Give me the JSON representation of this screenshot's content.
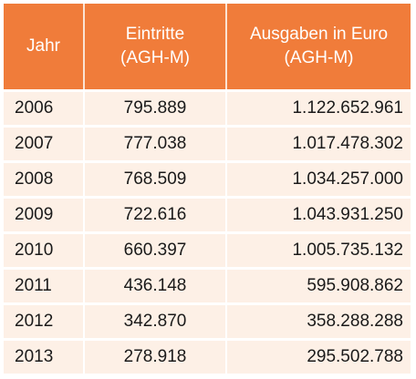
{
  "table": {
    "headers": {
      "jahr": "Jahr",
      "eintritte_line1": "Eintritte",
      "eintritte_line2": "(AGH-M)",
      "ausgaben_line1": "Ausgaben in Euro",
      "ausgaben_line2": "(AGH-M)"
    },
    "rows": [
      {
        "jahr": "2006",
        "eintritte": "795.889",
        "ausgaben": "1.122.652.961"
      },
      {
        "jahr": "2007",
        "eintritte": "777.038",
        "ausgaben": "1.017.478.302"
      },
      {
        "jahr": "2008",
        "eintritte": "768.509",
        "ausgaben": "1.034.257.000"
      },
      {
        "jahr": "2009",
        "eintritte": "722.616",
        "ausgaben": "1.043.931.250"
      },
      {
        "jahr": "2010",
        "eintritte": "660.397",
        "ausgaben": "1.005.735.132"
      },
      {
        "jahr": "2011",
        "eintritte": "436.148",
        "ausgaben": "595.908.862"
      },
      {
        "jahr": "2012",
        "eintritte": "342.870",
        "ausgaben": "358.288.288"
      },
      {
        "jahr": "2013",
        "eintritte": "278.918",
        "ausgaben": "295.502.788"
      }
    ]
  },
  "colors": {
    "header_bg": "#f07c3a",
    "header_text": "#ffffff",
    "row_bg": "#fdf0e6",
    "text": "#1a1a1a"
  }
}
